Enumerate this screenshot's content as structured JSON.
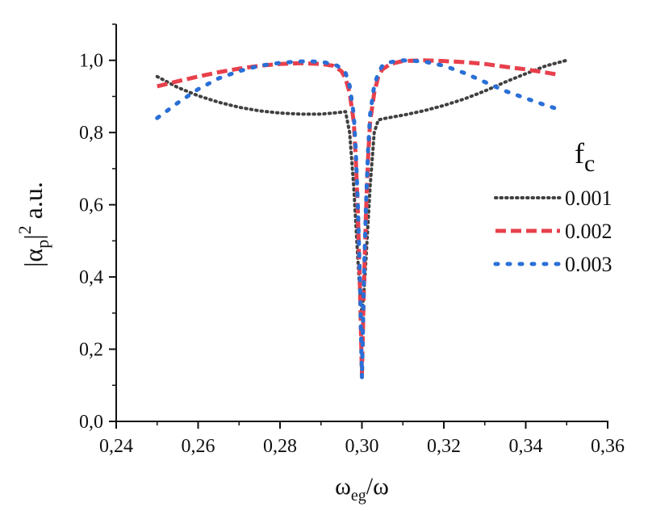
{
  "chart_data": {
    "type": "line",
    "xlabel": {
      "main": "ω",
      "sub": "eg",
      "rest": "/ω"
    },
    "ylabel": {
      "pre": "|α",
      "sub": "p",
      "mid": "|",
      "sup": "2",
      "post": " a.u."
    },
    "xlim": [
      0.24,
      0.36
    ],
    "ylim": [
      0.0,
      1.1
    ],
    "x_ticks": [
      0.24,
      0.26,
      0.28,
      0.3,
      0.32,
      0.34,
      0.36
    ],
    "x_tick_labels": [
      "0,24",
      "0,26",
      "0,28",
      "0,30",
      "0,32",
      "0,34",
      "0,36"
    ],
    "y_ticks": [
      0.0,
      0.2,
      0.4,
      0.6,
      0.8,
      1.0
    ],
    "y_tick_labels": [
      "0,0",
      "0,2",
      "0,4",
      "0,6",
      "0,8",
      "1,0"
    ],
    "legend_title": {
      "main": "f",
      "sub": "c"
    },
    "legend_position": "right",
    "series": [
      {
        "name": "0.001",
        "color": "#404040",
        "style": "dotted",
        "x": [
          0.25,
          0.255,
          0.26,
          0.265,
          0.27,
          0.275,
          0.28,
          0.285,
          0.29,
          0.294,
          0.296,
          0.297,
          0.298,
          0.2985,
          0.299,
          0.2995,
          0.3,
          0.3005,
          0.301,
          0.3015,
          0.302,
          0.303,
          0.304,
          0.306,
          0.31,
          0.315,
          0.32,
          0.325,
          0.33,
          0.335,
          0.34,
          0.345,
          0.35
        ],
        "y": [
          0.955,
          0.925,
          0.902,
          0.884,
          0.87,
          0.86,
          0.854,
          0.851,
          0.851,
          0.855,
          0.858,
          0.8,
          0.65,
          0.55,
          0.45,
          0.36,
          0.3,
          0.36,
          0.45,
          0.55,
          0.65,
          0.8,
          0.835,
          0.84,
          0.848,
          0.86,
          0.875,
          0.893,
          0.915,
          0.94,
          0.963,
          0.985,
          1.0
        ]
      },
      {
        "name": "0.002",
        "color": "#e8404c",
        "style": "dashed",
        "x": [
          0.25,
          0.255,
          0.26,
          0.265,
          0.27,
          0.275,
          0.28,
          0.285,
          0.29,
          0.293,
          0.295,
          0.296,
          0.297,
          0.298,
          0.2985,
          0.299,
          0.2995,
          0.3,
          0.3005,
          0.301,
          0.3015,
          0.302,
          0.303,
          0.304,
          0.305,
          0.307,
          0.31,
          0.315,
          0.32,
          0.325,
          0.33,
          0.335,
          0.34,
          0.345,
          0.348
        ],
        "y": [
          0.928,
          0.942,
          0.955,
          0.967,
          0.977,
          0.985,
          0.99,
          0.992,
          0.99,
          0.985,
          0.97,
          0.95,
          0.91,
          0.83,
          0.73,
          0.58,
          0.38,
          0.13,
          0.38,
          0.58,
          0.73,
          0.83,
          0.91,
          0.955,
          0.975,
          0.99,
          0.998,
          1.0,
          0.998,
          0.995,
          0.99,
          0.982,
          0.975,
          0.966,
          0.96
        ]
      },
      {
        "name": "0.003",
        "color": "#2a6fd6",
        "style": "dotted-coarse",
        "x": [
          0.25,
          0.255,
          0.26,
          0.265,
          0.27,
          0.275,
          0.28,
          0.285,
          0.288,
          0.291,
          0.294,
          0.296,
          0.297,
          0.298,
          0.2985,
          0.299,
          0.2995,
          0.3,
          0.3005,
          0.301,
          0.3015,
          0.302,
          0.303,
          0.304,
          0.305,
          0.307,
          0.31,
          0.315,
          0.32,
          0.325,
          0.33,
          0.335,
          0.34,
          0.345,
          0.347
        ],
        "y": [
          0.84,
          0.882,
          0.92,
          0.95,
          0.97,
          0.985,
          0.993,
          0.997,
          0.997,
          0.994,
          0.985,
          0.965,
          0.93,
          0.85,
          0.75,
          0.6,
          0.4,
          0.12,
          0.4,
          0.6,
          0.75,
          0.85,
          0.93,
          0.965,
          0.985,
          0.995,
          1.0,
          0.997,
          0.985,
          0.965,
          0.94,
          0.915,
          0.895,
          0.875,
          0.868
        ]
      }
    ]
  }
}
